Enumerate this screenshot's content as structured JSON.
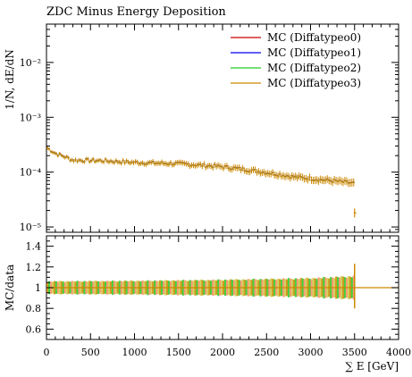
{
  "chart_data": [
    {
      "type": "scatter",
      "title": "ZDC Minus Energy Deposition",
      "ylabel": "1/N, dE/dN",
      "yscale": "log",
      "xlim": [
        0,
        4000
      ],
      "ylim": [
        8e-06,
        0.05
      ],
      "yticks": [
        {
          "value": 0.01,
          "label": "10⁻²"
        },
        {
          "value": 0.001,
          "label": "10⁻³"
        },
        {
          "value": 0.0001,
          "label": "10⁻⁴"
        },
        {
          "value": 1e-05,
          "label": "10⁻⁵"
        }
      ],
      "grid": false,
      "legend_position": "top-right",
      "legend": [
        {
          "label": "MC (Diffatypeo0)",
          "color": "#cc0000"
        },
        {
          "label": "MC (Diffatypeo1)",
          "color": "#0000ee"
        },
        {
          "label": "MC (Diffatypeo2)",
          "color": "#22cc22"
        },
        {
          "label": "MC (Diffatypeo3)",
          "color": "#cc8800"
        }
      ],
      "profile_points": [
        {
          "x": 0,
          "y": 0.00028
        },
        {
          "x": 100,
          "y": 0.00022
        },
        {
          "x": 300,
          "y": 0.000165
        },
        {
          "x": 600,
          "y": 0.000162
        },
        {
          "x": 1000,
          "y": 0.00015
        },
        {
          "x": 1500,
          "y": 0.000142
        },
        {
          "x": 2000,
          "y": 0.000125
        },
        {
          "x": 2500,
          "y": 9.8e-05
        },
        {
          "x": 2800,
          "y": 8.2e-05
        },
        {
          "x": 3100,
          "y": 7.3e-05
        },
        {
          "x": 3300,
          "y": 6.8e-05
        },
        {
          "x": 3500,
          "y": 6.2e-05
        }
      ],
      "bin_width": 20,
      "x_end": 3500,
      "last_point": {
        "x": 3500,
        "y": 1.8e-05
      }
    },
    {
      "type": "band",
      "ylabel": "MC/data",
      "xlabel": "∑ E [GeV]",
      "xlim": [
        0,
        4000
      ],
      "ylim": [
        0.5,
        1.5
      ],
      "xticks": [
        0,
        500,
        1000,
        1500,
        2000,
        2500,
        3000,
        3500,
        4000
      ],
      "yticks": [
        0.6,
        0.8,
        1,
        1.2,
        1.4
      ],
      "reference": 1,
      "band_halfwidth": [
        {
          "x": 0,
          "y": 0.06
        },
        {
          "x": 1000,
          "y": 0.065
        },
        {
          "x": 2000,
          "y": 0.075
        },
        {
          "x": 3000,
          "y": 0.09
        },
        {
          "x": 3500,
          "y": 0.11
        }
      ],
      "band_end": 3500
    }
  ]
}
